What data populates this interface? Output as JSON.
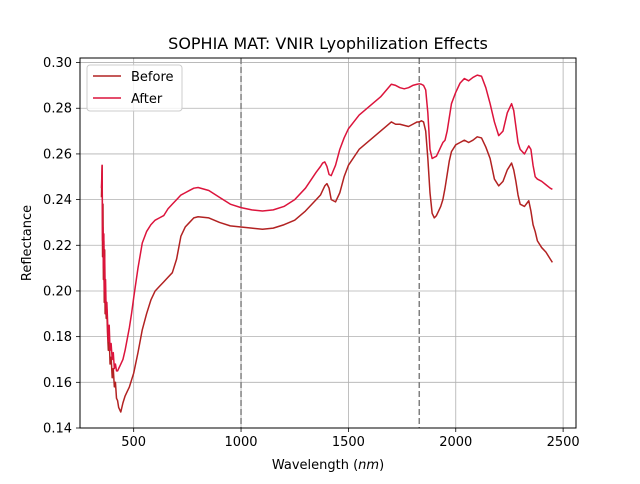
{
  "chart_data": {
    "type": "line",
    "title": "SOPHIA MAT: VNIR Lyophilization Effects",
    "xlabel_text": "Wavelength (",
    "xlabel_unit": "nm",
    "xlabel_close": ")",
    "ylabel": "Reflectance",
    "xlim": [
      250,
      2560
    ],
    "ylim": [
      0.14,
      0.302
    ],
    "xticks": [
      500,
      1000,
      1500,
      2000,
      2500
    ],
    "yticks": [
      0.14,
      0.16,
      0.18,
      0.2,
      0.22,
      0.24,
      0.26,
      0.28,
      0.3
    ],
    "ytick_labels": [
      "0.14",
      "0.16",
      "0.18",
      "0.20",
      "0.22",
      "0.24",
      "0.26",
      "0.28",
      "0.30"
    ],
    "grid": true,
    "legend_position": "upper-left",
    "vlines": [
      1000,
      1830
    ],
    "series": [
      {
        "name": "Before",
        "color": "#b22222",
        "x": [
          350,
          353,
          355,
          357,
          359,
          361,
          363,
          365,
          367,
          369,
          372,
          375,
          378,
          382,
          386,
          390,
          395,
          400,
          405,
          410,
          415,
          420,
          425,
          430,
          440,
          450,
          460,
          470,
          480,
          490,
          500,
          520,
          540,
          560,
          580,
          600,
          620,
          640,
          660,
          680,
          700,
          720,
          740,
          760,
          780,
          800,
          850,
          900,
          950,
          1000,
          1050,
          1100,
          1150,
          1200,
          1250,
          1300,
          1350,
          1370,
          1380,
          1390,
          1400,
          1410,
          1420,
          1440,
          1460,
          1480,
          1500,
          1550,
          1600,
          1650,
          1700,
          1720,
          1740,
          1760,
          1780,
          1800,
          1820,
          1830,
          1840,
          1850,
          1860,
          1870,
          1880,
          1890,
          1900,
          1910,
          1920,
          1930,
          1940,
          1950,
          1960,
          1970,
          1980,
          2000,
          2020,
          2040,
          2060,
          2080,
          2100,
          2120,
          2140,
          2160,
          2180,
          2200,
          2220,
          2240,
          2260,
          2270,
          2280,
          2290,
          2300,
          2320,
          2340,
          2350,
          2360,
          2370,
          2380,
          2400,
          2420,
          2440,
          2450
        ],
        "y": [
          0.241,
          0.255,
          0.215,
          0.238,
          0.205,
          0.222,
          0.195,
          0.218,
          0.19,
          0.2,
          0.188,
          0.192,
          0.182,
          0.174,
          0.18,
          0.168,
          0.171,
          0.162,
          0.166,
          0.158,
          0.16,
          0.153,
          0.152,
          0.149,
          0.147,
          0.151,
          0.154,
          0.156,
          0.158,
          0.161,
          0.164,
          0.173,
          0.183,
          0.19,
          0.196,
          0.2,
          0.202,
          0.204,
          0.206,
          0.208,
          0.214,
          0.224,
          0.228,
          0.23,
          0.232,
          0.2325,
          0.232,
          0.23,
          0.2285,
          0.228,
          0.2275,
          0.227,
          0.2275,
          0.229,
          0.231,
          0.235,
          0.24,
          0.242,
          0.244,
          0.246,
          0.247,
          0.245,
          0.24,
          0.239,
          0.243,
          0.25,
          0.255,
          0.262,
          0.266,
          0.27,
          0.274,
          0.273,
          0.273,
          0.2725,
          0.272,
          0.273,
          0.274,
          0.274,
          0.2745,
          0.274,
          0.27,
          0.258,
          0.243,
          0.234,
          0.232,
          0.233,
          0.235,
          0.237,
          0.24,
          0.245,
          0.251,
          0.257,
          0.261,
          0.264,
          0.265,
          0.266,
          0.265,
          0.266,
          0.2675,
          0.267,
          0.263,
          0.258,
          0.249,
          0.246,
          0.248,
          0.253,
          0.256,
          0.253,
          0.248,
          0.242,
          0.238,
          0.237,
          0.2395,
          0.235,
          0.229,
          0.226,
          0.222,
          0.219,
          0.217,
          0.214,
          0.2125
        ]
      },
      {
        "name": "After",
        "color": "#dc143c",
        "x": [
          350,
          353,
          355,
          357,
          359,
          361,
          363,
          365,
          367,
          369,
          372,
          375,
          378,
          382,
          386,
          390,
          395,
          400,
          405,
          410,
          415,
          420,
          425,
          430,
          440,
          450,
          460,
          470,
          480,
          490,
          500,
          520,
          540,
          560,
          580,
          600,
          620,
          640,
          660,
          680,
          700,
          720,
          740,
          760,
          780,
          800,
          850,
          900,
          950,
          1000,
          1050,
          1100,
          1150,
          1200,
          1250,
          1300,
          1350,
          1370,
          1380,
          1390,
          1400,
          1410,
          1420,
          1440,
          1460,
          1480,
          1500,
          1550,
          1600,
          1650,
          1700,
          1720,
          1740,
          1760,
          1780,
          1800,
          1820,
          1830,
          1840,
          1850,
          1860,
          1870,
          1880,
          1890,
          1900,
          1910,
          1920,
          1930,
          1940,
          1950,
          1960,
          1970,
          1980,
          2000,
          2020,
          2040,
          2060,
          2080,
          2100,
          2120,
          2140,
          2160,
          2180,
          2200,
          2220,
          2240,
          2260,
          2270,
          2280,
          2290,
          2300,
          2320,
          2340,
          2350,
          2360,
          2370,
          2380,
          2400,
          2420,
          2440,
          2450
        ],
        "y": [
          0.245,
          0.255,
          0.222,
          0.228,
          0.21,
          0.225,
          0.2,
          0.215,
          0.195,
          0.205,
          0.19,
          0.195,
          0.188,
          0.178,
          0.185,
          0.174,
          0.177,
          0.17,
          0.173,
          0.166,
          0.168,
          0.165,
          0.165,
          0.166,
          0.168,
          0.17,
          0.174,
          0.179,
          0.184,
          0.19,
          0.197,
          0.21,
          0.221,
          0.226,
          0.229,
          0.231,
          0.232,
          0.233,
          0.236,
          0.238,
          0.24,
          0.242,
          0.243,
          0.244,
          0.245,
          0.2453,
          0.244,
          0.241,
          0.238,
          0.2365,
          0.2355,
          0.235,
          0.2355,
          0.237,
          0.24,
          0.245,
          0.252,
          0.2545,
          0.256,
          0.2565,
          0.2545,
          0.251,
          0.2505,
          0.255,
          0.262,
          0.267,
          0.271,
          0.277,
          0.281,
          0.285,
          0.2905,
          0.29,
          0.289,
          0.2885,
          0.289,
          0.29,
          0.2905,
          0.2907,
          0.2905,
          0.29,
          0.288,
          0.278,
          0.262,
          0.258,
          0.2585,
          0.259,
          0.261,
          0.263,
          0.265,
          0.266,
          0.27,
          0.276,
          0.282,
          0.287,
          0.291,
          0.293,
          0.292,
          0.2935,
          0.2945,
          0.294,
          0.289,
          0.282,
          0.274,
          0.268,
          0.27,
          0.278,
          0.282,
          0.279,
          0.272,
          0.265,
          0.262,
          0.26,
          0.2635,
          0.262,
          0.255,
          0.25,
          0.249,
          0.248,
          0.2465,
          0.245,
          0.2445
        ]
      }
    ]
  }
}
